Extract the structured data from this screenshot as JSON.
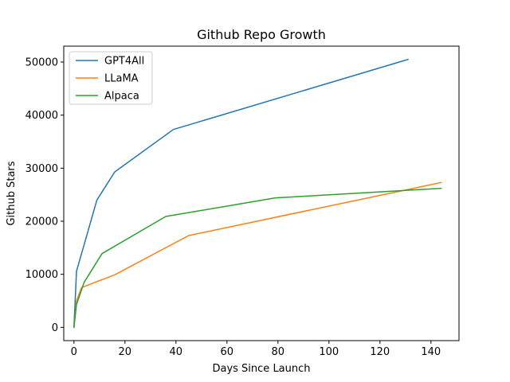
{
  "chart_data": {
    "type": "line",
    "title": "Github Repo Growth",
    "xlabel": "Days Since Launch",
    "ylabel": "Github Stars",
    "xlim": [
      -4,
      151
    ],
    "ylim": [
      -2500,
      53000
    ],
    "x_ticks": [
      0,
      20,
      40,
      60,
      80,
      100,
      120,
      140
    ],
    "x_tick_labels": [
      "0",
      "20",
      "40",
      "60",
      "80",
      "100",
      "120",
      "140"
    ],
    "y_ticks": [
      0,
      10000,
      20000,
      30000,
      40000,
      50000
    ],
    "y_tick_labels": [
      "0",
      "10000",
      "20000",
      "30000",
      "40000",
      "50000"
    ],
    "grid": false,
    "legend": "top-left",
    "series": [
      {
        "name": "GPT4All",
        "color": "#1f77b4",
        "x": [
          0,
          1,
          4,
          9,
          16,
          39,
          131
        ],
        "y": [
          0,
          10600,
          15600,
          24000,
          29300,
          37300,
          50500
        ]
      },
      {
        "name": "LLaMA",
        "color": "#ff7f0e",
        "x": [
          0,
          1,
          3,
          16,
          45,
          144
        ],
        "y": [
          0,
          5000,
          7500,
          9900,
          17300,
          27300
        ]
      },
      {
        "name": "Alpaca",
        "color": "#2ca02c",
        "x": [
          0,
          1,
          4,
          11,
          36,
          79,
          144
        ],
        "y": [
          0,
          4300,
          8500,
          13900,
          20900,
          24400,
          26200
        ]
      }
    ]
  }
}
